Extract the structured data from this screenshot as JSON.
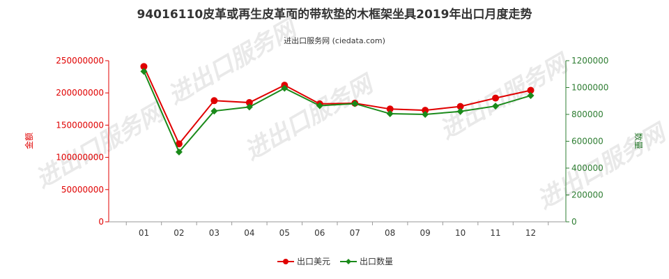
{
  "chart_data": {
    "type": "line",
    "title": "94016110皮革或再生皮革面的带软垫的木框架坐具2019年出口月度走势",
    "subtitle": "进出口服务网 (ciedata.com)",
    "categories": [
      "01",
      "02",
      "03",
      "04",
      "05",
      "06",
      "07",
      "08",
      "09",
      "10",
      "11",
      "12"
    ],
    "y_left": {
      "label": "金额",
      "lim": [
        0,
        250000000
      ],
      "ticks": [
        "0",
        "50000000",
        "100000000",
        "150000000",
        "200000000",
        "250000000"
      ]
    },
    "y_right": {
      "label": "数量",
      "lim": [
        0,
        1200000
      ],
      "ticks": [
        "0",
        "200000",
        "400000",
        "600000",
        "800000",
        "1000000",
        "1200000"
      ]
    },
    "series": [
      {
        "name": "出口美元",
        "axis": "left",
        "color": "#e00000",
        "marker": "circle",
        "values": [
          241000000,
          121000000,
          188000000,
          185000000,
          212000000,
          183000000,
          184000000,
          175000000,
          173000000,
          179000000,
          192000000,
          204000000
        ]
      },
      {
        "name": "出口数量",
        "axis": "right",
        "color": "#1a8a1a",
        "marker": "diamond",
        "values": [
          1120000,
          520000,
          825000,
          855000,
          995000,
          865000,
          880000,
          805000,
          800000,
          822000,
          862000,
          940000
        ]
      }
    ],
    "grid": false,
    "legend": "bottom-center"
  },
  "watermark": "进出口服务网"
}
